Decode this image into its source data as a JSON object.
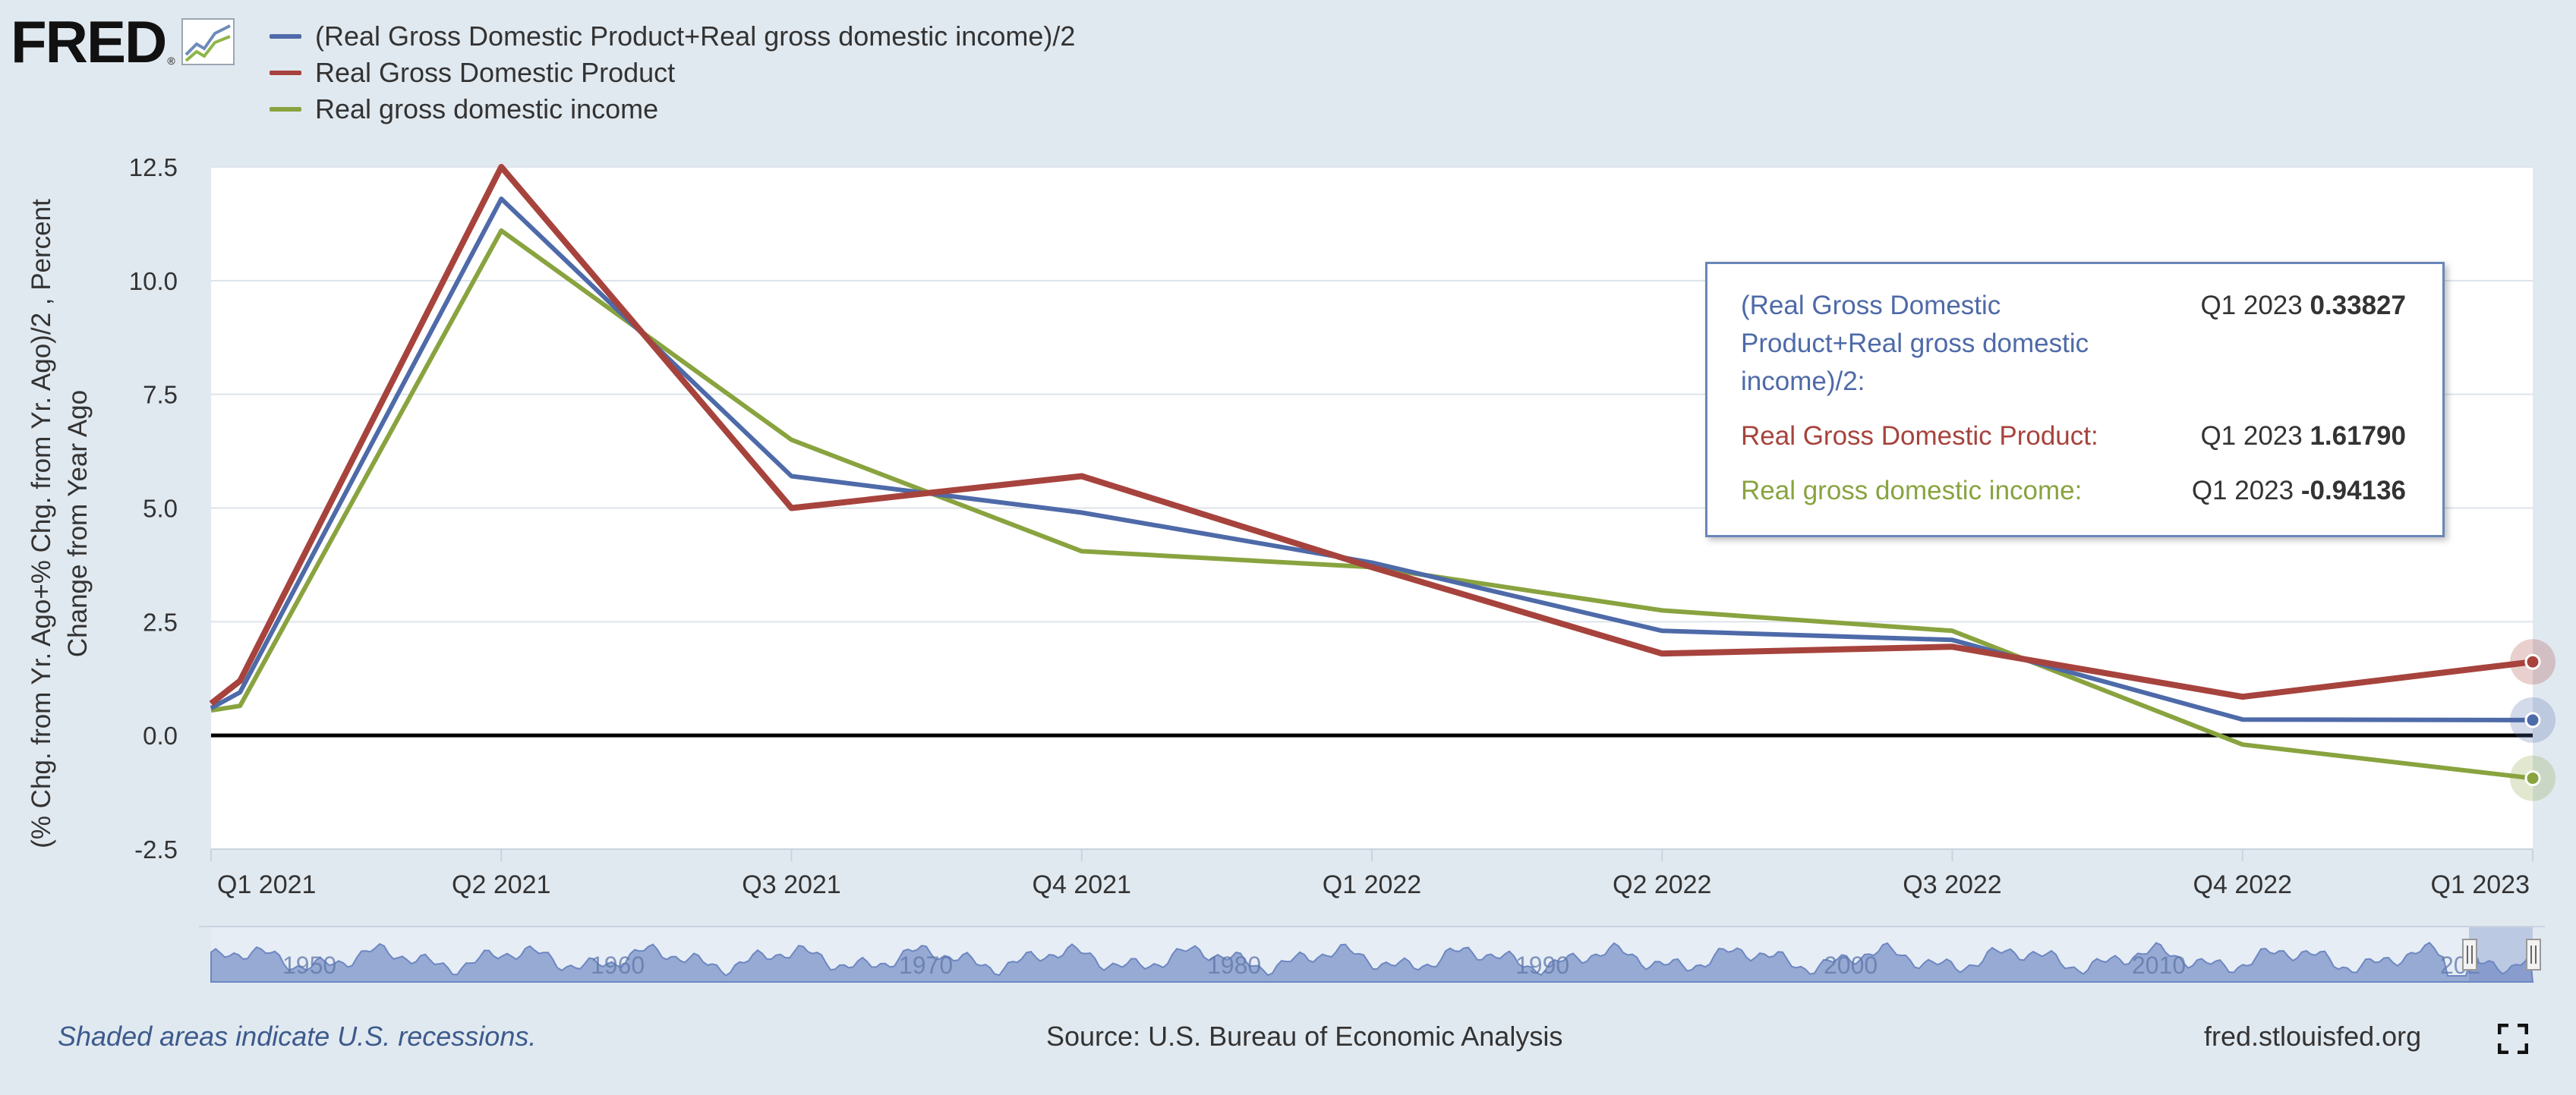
{
  "branding": {
    "logo_text": "FRED",
    "logo_reg": "®"
  },
  "legend": [
    {
      "label": "(Real Gross Domestic Product+Real gross domestic income)/2",
      "color": "#4e6aa8"
    },
    {
      "label": "Real Gross Domestic Product",
      "color": "#a7433d"
    },
    {
      "label": "Real gross domestic income",
      "color": "#89a33f"
    }
  ],
  "tooltip": {
    "rows": [
      {
        "name": "(Real Gross Domestic Product+Real gross domestic income)/2:",
        "period": "Q1 2023",
        "value": "0.33827",
        "color": "#4e6aa8"
      },
      {
        "name": "Real Gross Domestic Product:",
        "period": "Q1 2023",
        "value": "1.61790",
        "color": "#a7433d"
      },
      {
        "name": "Real gross domestic income:",
        "period": "Q1 2023",
        "value": "-0.94136",
        "color": "#89a33f"
      }
    ]
  },
  "footer": {
    "recession_note": "Shaded areas indicate U.S. recessions.",
    "source": "Source: U.S. Bureau of Economic Analysis",
    "site": "fred.stlouisfed.org"
  },
  "navigator": {
    "year_labels": [
      "1950",
      "1960",
      "1970",
      "1980",
      "1990",
      "2000",
      "2010",
      "202"
    ]
  },
  "chart_data": {
    "type": "line",
    "ylabel": "(% Chg. from Yr. Ago+% Chg. from Yr. Ago)/2 , Percent Change from Year Ago",
    "xlabel": "",
    "ylim": [
      -2.5,
      12.5
    ],
    "yticks": [
      -2.5,
      0.0,
      2.5,
      5.0,
      7.5,
      10.0,
      12.5
    ],
    "x_tick_labels": [
      "Q1 2021",
      "Q2 2021",
      "Q3 2021",
      "Q4 2021",
      "Q1 2022",
      "Q2 2022",
      "Q3 2022",
      "Q4 2022",
      "Q1 2023"
    ],
    "grid": true,
    "x": [
      0,
      0.1,
      1,
      2,
      3,
      4,
      5,
      6,
      7,
      8
    ],
    "series": [
      {
        "name": "(Real Gross Domestic Product+Real gross domestic income)/2",
        "color": "#4e6aa8",
        "values": [
          0.6,
          0.95,
          11.8,
          5.7,
          4.9,
          3.8,
          2.3,
          2.1,
          0.35,
          0.33827
        ]
      },
      {
        "name": "Real Gross Domestic Product",
        "color": "#a7433d",
        "values": [
          0.7,
          1.2,
          12.5,
          5.0,
          5.7,
          3.7,
          1.8,
          1.95,
          0.85,
          1.6179
        ]
      },
      {
        "name": "Real gross domestic income",
        "color": "#89a33f",
        "values": [
          0.55,
          0.65,
          11.1,
          6.5,
          4.05,
          3.7,
          2.75,
          2.3,
          -0.2,
          -0.94136
        ]
      }
    ]
  }
}
